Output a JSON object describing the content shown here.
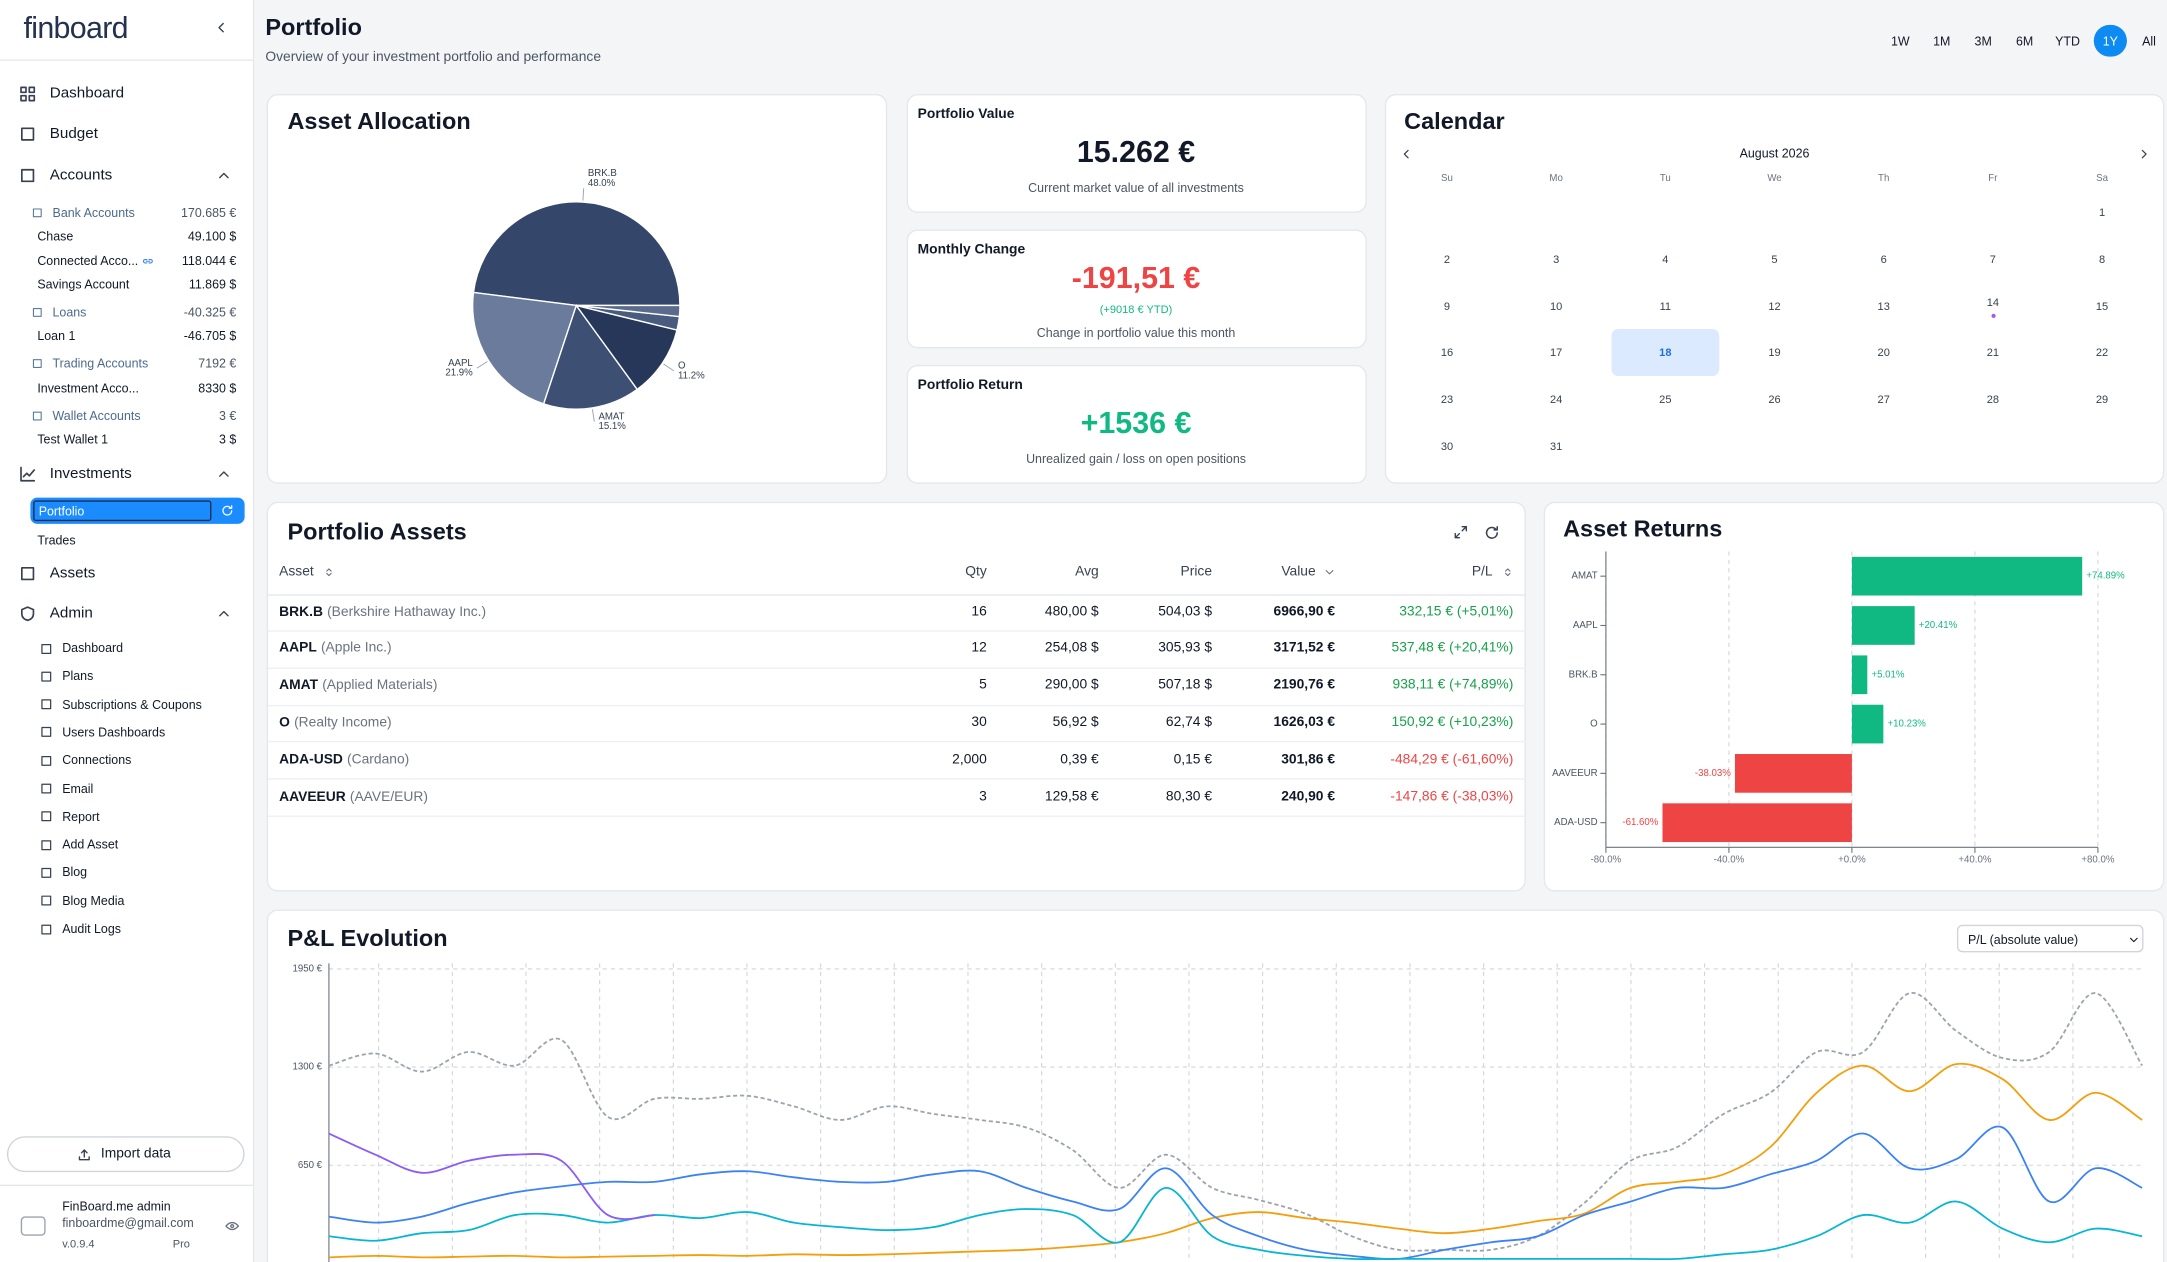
{
  "sidebar": {
    "logo": "finboard",
    "top": [
      "Dashboard",
      "Budget"
    ],
    "accounts": {
      "title": "Accounts",
      "groups": [
        {
          "name": "Bank Accounts",
          "total": "170.685 €",
          "items": [
            {
              "name": "Chase",
              "amount": "49.100 $"
            },
            {
              "name": "Connected Acco...",
              "amount": "118.044 €",
              "linked": true
            },
            {
              "name": "Savings Account",
              "amount": "11.869 $"
            }
          ]
        },
        {
          "name": "Loans",
          "total": "-40.325 €",
          "items": [
            {
              "name": "Loan 1",
              "amount": "-46.705 $"
            }
          ]
        },
        {
          "name": "Trading Accounts",
          "total": "7192 €",
          "items": [
            {
              "name": "Investment Acco...",
              "amount": "8330 $"
            }
          ]
        },
        {
          "name": "Wallet Accounts",
          "total": "3 €",
          "items": [
            {
              "name": "Test Wallet 1",
              "amount": "3 $"
            }
          ]
        }
      ]
    },
    "investments": {
      "title": "Investments",
      "items": [
        "Portfolio",
        "Trades"
      ],
      "active": 0
    },
    "assets": "Assets",
    "admin": {
      "title": "Admin",
      "items": [
        "Dashboard",
        "Plans",
        "Subscriptions & Coupons",
        "Users Dashboards",
        "Connections",
        "Email",
        "Report",
        "Add Asset",
        "Blog",
        "Blog Media",
        "Audit Logs"
      ]
    },
    "import": "Import data",
    "user": {
      "name": "FinBoard.me admin",
      "email": "finboardme@gmail.com",
      "version": "v.0.9.4",
      "plan": "Pro"
    }
  },
  "header": {
    "title": "Portfolio",
    "subtitle": "Overview of your investment portfolio and performance",
    "ranges": [
      "1W",
      "1M",
      "3M",
      "6M",
      "YTD",
      "1Y",
      "All"
    ],
    "active_range": 5
  },
  "kpis": [
    {
      "title": "Portfolio Value",
      "value": "15.262 €",
      "caption": "Current market value of all investments",
      "color": "#111827"
    },
    {
      "title": "Monthly Change",
      "value": "-191,51 €",
      "note": "(+9018 € YTD)",
      "caption": "Change in portfolio value this month",
      "color": "#ef4444"
    },
    {
      "title": "Portfolio Return",
      "value": "+1536 €",
      "caption": "Unrealized gain / loss on open positions",
      "color": "#10b981"
    }
  ],
  "calendar": {
    "title": "Calendar",
    "month": "August 2026",
    "weekdays": [
      "Su",
      "Mo",
      "Tu",
      "We",
      "Th",
      "Fr",
      "Sa"
    ],
    "weeks": [
      [
        null,
        null,
        null,
        null,
        null,
        null,
        1
      ],
      [
        2,
        3,
        4,
        5,
        6,
        7,
        8
      ],
      [
        9,
        10,
        11,
        12,
        13,
        14,
        15
      ],
      [
        16,
        17,
        18,
        19,
        20,
        21,
        22
      ],
      [
        23,
        24,
        25,
        26,
        27,
        28,
        29
      ],
      [
        30,
        31,
        null,
        null,
        null,
        null,
        null
      ]
    ],
    "selected": 18,
    "events": [
      14
    ]
  },
  "table": {
    "title": "Portfolio Assets",
    "columns": [
      "Asset",
      "Qty",
      "Avg",
      "Price",
      "Value",
      "P/L"
    ],
    "rows": [
      {
        "symbol": "BRK.B",
        "name": "(Berkshire Hathaway Inc.)",
        "qty": "16",
        "avg": "480,00 $",
        "price": "504,03 $",
        "value": "6966,90 €",
        "pl": "332,15 € (+5,01%)"
      },
      {
        "symbol": "AAPL",
        "name": "(Apple Inc.)",
        "qty": "12",
        "avg": "254,08 $",
        "price": "305,93 $",
        "value": "3171,52 €",
        "pl": "537,48 € (+20,41%)"
      },
      {
        "symbol": "AMAT",
        "name": "(Applied Materials)",
        "qty": "5",
        "avg": "290,00 $",
        "price": "507,18 $",
        "value": "2190,76 €",
        "pl": "938,11 € (+74,89%)"
      },
      {
        "symbol": "O",
        "name": "(Realty Income)",
        "qty": "30",
        "avg": "56,92 $",
        "price": "62,74 $",
        "value": "1626,03 €",
        "pl": "150,92 € (+10,23%)"
      },
      {
        "symbol": "ADA-USD",
        "name": "(Cardano)",
        "qty": "2,000",
        "avg": "0,39 €",
        "price": "0,15 €",
        "value": "301,86 €",
        "pl": "-484,29 € (-61,60%)"
      },
      {
        "symbol": "AAVEEUR",
        "name": "(AAVE/EUR)",
        "qty": "3",
        "avg": "129,58 €",
        "price": "80,30 €",
        "value": "240,90 €",
        "pl": "-147,86 € (-38,03%)"
      }
    ]
  },
  "chart_data": [
    {
      "type": "pie",
      "title": "Asset Allocation",
      "categories": [
        "BRK.B",
        "AAPL",
        "AMAT",
        "O",
        null,
        null
      ],
      "values": [
        48.0,
        21.9,
        15.1,
        11.2,
        2.1,
        1.7
      ],
      "value_labels": [
        "48.0%",
        "21.9%",
        "15.1%",
        "11.2%",
        null,
        null
      ],
      "colors": [
        "#34466a",
        "#6b7b9c",
        "#3e4f74",
        "#27375a",
        "#4a5b80",
        "#5a6b8e"
      ]
    },
    {
      "type": "bar",
      "title": "Asset Returns",
      "categories": [
        "AMAT",
        "AAPL",
        "BRK.B",
        "O",
        "AAVEEUR",
        "ADA-USD"
      ],
      "values": [
        74.89,
        20.41,
        5.01,
        10.23,
        -38.03,
        -61.6
      ],
      "value_labels": [
        "+74.89%",
        "+20.41%",
        "+5.01%",
        "+10.23%",
        "-38.03%",
        "-61.60%"
      ],
      "colors": [
        "#10b981",
        "#10b981",
        "#10b981",
        "#10b981",
        "#ef4444",
        "#ef4444"
      ],
      "xlim": [
        -80,
        80
      ],
      "xticks": [
        {
          "value": -80,
          "label": "-80.0%"
        },
        {
          "value": -40,
          "label": "-40.0%"
        },
        {
          "value": 0,
          "label": "+0.0%"
        },
        {
          "value": 40,
          "label": "+40.0%"
        },
        {
          "value": 80,
          "label": "+80.0%"
        }
      ],
      "grid": true
    },
    {
      "type": "line",
      "title": "P&L Evolution",
      "selector": "P/L (absolute value)",
      "ylim": [
        0,
        1950
      ],
      "yticks": [
        {
          "value": 650,
          "label": "650 €"
        },
        {
          "value": 1300,
          "label": "1300 €"
        },
        {
          "value": 1950,
          "label": "1950 €"
        }
      ],
      "grid": true,
      "series": [
        {
          "color": "#9ca3af",
          "dashed": true,
          "values": [
            1310,
            1390,
            1270,
            1400,
            1310,
            1480,
            970,
            1090,
            1090,
            1110,
            1040,
            950,
            1040,
            990,
            950,
            900,
            750,
            500,
            720,
            500,
            420,
            330,
            180,
            90,
            90,
            90,
            180,
            400,
            680,
            770,
            990,
            1130,
            1400,
            1400,
            1790,
            1540,
            1360,
            1400,
            1790,
            1310
          ]
        },
        {
          "color": "#f59e0b",
          "values": [
            40,
            50,
            40,
            45,
            50,
            40,
            45,
            50,
            55,
            50,
            60,
            55,
            60,
            70,
            80,
            90,
            110,
            140,
            200,
            300,
            340,
            300,
            270,
            230,
            200,
            230,
            280,
            330,
            500,
            540,
            590,
            770,
            1130,
            1310,
            1140,
            1320,
            1220,
            950,
            1130,
            950
          ]
        },
        {
          "color": "#3b82f6",
          "values": [
            310,
            270,
            310,
            400,
            470,
            510,
            540,
            540,
            590,
            610,
            570,
            540,
            540,
            590,
            610,
            500,
            410,
            360,
            630,
            320,
            180,
            90,
            50,
            30,
            90,
            140,
            180,
            320,
            410,
            500,
            500,
            590,
            680,
            860,
            630,
            690,
            900,
            410,
            630,
            500
          ]
        },
        {
          "color": "#06b6d4",
          "values": [
            180,
            150,
            200,
            220,
            320,
            320,
            270,
            320,
            300,
            340,
            270,
            240,
            220,
            240,
            320,
            360,
            320,
            140,
            500,
            180,
            90,
            50,
            30,
            30,
            30,
            30,
            30,
            30,
            30,
            30,
            60,
            90,
            180,
            320,
            270,
            410,
            230,
            140,
            230,
            180
          ]
        },
        {
          "color": "#8b5cf6",
          "values": [
            860,
            720,
            600,
            680,
            720,
            680,
            320,
            320,
            null,
            null,
            null,
            null,
            null,
            null,
            null,
            null,
            null,
            null,
            null,
            null,
            null,
            null,
            null,
            null,
            null,
            null,
            null,
            null,
            null,
            null,
            null,
            null,
            null,
            null,
            null,
            null,
            null,
            null,
            null,
            null
          ]
        }
      ]
    }
  ]
}
